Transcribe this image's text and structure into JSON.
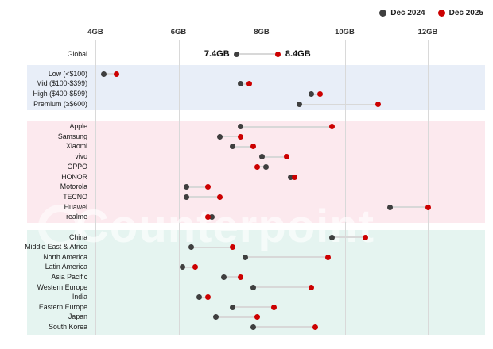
{
  "legend": {
    "items": [
      {
        "label": "Dec 2024",
        "color": "#3f3f3f"
      },
      {
        "label": "Dec 2025",
        "color": "#cc0000"
      }
    ]
  },
  "watermark": {
    "text": "Counterpoint"
  },
  "chart_data": {
    "type": "scatter",
    "subtype": "dumbbell",
    "unit": "GB",
    "series_names": [
      "Dec 2024",
      "Dec 2025"
    ],
    "series_colors": {
      "dec_2024": "#3f3f3f",
      "dec_2025": "#cc0000"
    },
    "connector_color": "#d8d8d8",
    "gridline_color": "#d9d9d9",
    "axis": {
      "min": 4,
      "max": 12.5,
      "ticks": [
        {
          "label": "4GB",
          "value": 4
        },
        {
          "label": "6GB",
          "value": 6
        },
        {
          "label": "8GB",
          "value": 8
        },
        {
          "label": "10GB",
          "value": 10
        },
        {
          "label": "12GB",
          "value": 12
        }
      ]
    },
    "global_value_labels": {
      "dec_2024": "7.4GB",
      "dec_2025": "8.4GB"
    },
    "groups": [
      {
        "name": "global",
        "bg": "transparent",
        "rows": [
          {
            "label": "Global",
            "dec_2024": 7.4,
            "dec_2025": 8.4,
            "show_values": true
          }
        ]
      },
      {
        "name": "price-tiers",
        "bg": "#e8eef8",
        "rows": [
          {
            "label": "Low (<$100)",
            "dec_2024": 4.2,
            "dec_2025": 4.5
          },
          {
            "label": "Mid ($100-$399)",
            "dec_2024": 7.5,
            "dec_2025": 7.7
          },
          {
            "label": "High ($400-$599)",
            "dec_2024": 9.2,
            "dec_2025": 9.4
          },
          {
            "label": "Premium (≥$600)",
            "dec_2024": 8.9,
            "dec_2025": 10.8
          }
        ]
      },
      {
        "name": "brands",
        "bg": "#fce9ee",
        "rows": [
          {
            "label": "Apple",
            "dec_2024": 7.5,
            "dec_2025": 9.7
          },
          {
            "label": "Samsung",
            "dec_2024": 7.0,
            "dec_2025": 7.5
          },
          {
            "label": "Xiaomi",
            "dec_2024": 7.3,
            "dec_2025": 7.8
          },
          {
            "label": "vivo",
            "dec_2024": 8.0,
            "dec_2025": 8.6
          },
          {
            "label": "OPPO",
            "dec_2024": 8.1,
            "dec_2025": 7.9
          },
          {
            "label": "HONOR",
            "dec_2024": 8.7,
            "dec_2025": 8.8
          },
          {
            "label": "Motorola",
            "dec_2024": 6.2,
            "dec_2025": 6.7
          },
          {
            "label": "TECNO",
            "dec_2024": 6.2,
            "dec_2025": 7.0
          },
          {
            "label": "Huawei",
            "dec_2024": 11.1,
            "dec_2025": 12.0
          },
          {
            "label": "realme",
            "dec_2024": 6.8,
            "dec_2025": 6.7
          }
        ]
      },
      {
        "name": "regions",
        "bg": "#e5f4f0",
        "rows": [
          {
            "label": "China",
            "dec_2024": 9.7,
            "dec_2025": 10.5
          },
          {
            "label": "Middle East & Africa",
            "dec_2024": 6.3,
            "dec_2025": 7.3
          },
          {
            "label": "North America",
            "dec_2024": 7.6,
            "dec_2025": 9.6
          },
          {
            "label": "Latin America",
            "dec_2024": 6.1,
            "dec_2025": 6.4
          },
          {
            "label": "Asia Pacific",
            "dec_2024": 7.1,
            "dec_2025": 7.5
          },
          {
            "label": "Western Europe",
            "dec_2024": 7.8,
            "dec_2025": 9.2
          },
          {
            "label": "India",
            "dec_2024": 6.5,
            "dec_2025": 6.7
          },
          {
            "label": "Eastern Europe",
            "dec_2024": 7.3,
            "dec_2025": 8.3
          },
          {
            "label": "Japan",
            "dec_2024": 6.9,
            "dec_2025": 7.9
          },
          {
            "label": "South Korea",
            "dec_2024": 7.8,
            "dec_2025": 9.3
          }
        ]
      }
    ]
  }
}
